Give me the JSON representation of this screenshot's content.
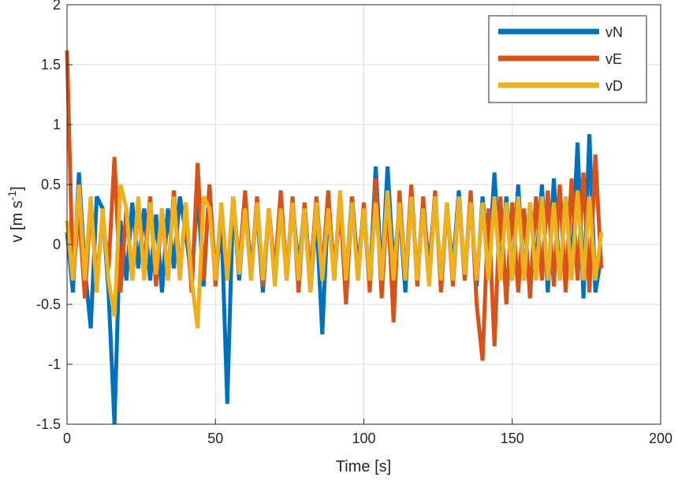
{
  "chart_data": {
    "type": "line",
    "xlabel": "Time [s]",
    "ylabel": "v [m s",
    "ylabel_sup": "-1",
    "ylabel_close": "]",
    "xlim": [
      0,
      200
    ],
    "ylim": [
      -1.5,
      2
    ],
    "xticks": [
      "0",
      "50",
      "100",
      "150",
      "200"
    ],
    "yticks": [
      "-1.5",
      "-1",
      "-0.5",
      "0",
      "0.5",
      "1",
      "1.5",
      "2"
    ],
    "grid": true,
    "legend_position": "top-right",
    "t": [
      0,
      2,
      4,
      6,
      8,
      10,
      12,
      14,
      16,
      18,
      20,
      22,
      24,
      26,
      28,
      30,
      32,
      34,
      36,
      38,
      40,
      42,
      44,
      46,
      48,
      50,
      52,
      54,
      56,
      58,
      60,
      62,
      64,
      66,
      68,
      70,
      72,
      74,
      76,
      78,
      80,
      82,
      84,
      86,
      88,
      90,
      92,
      94,
      96,
      98,
      100,
      102,
      104,
      106,
      108,
      110,
      112,
      114,
      116,
      118,
      120,
      122,
      124,
      126,
      128,
      130,
      132,
      134,
      136,
      138,
      140,
      142,
      144,
      146,
      148,
      150,
      152,
      154,
      156,
      158,
      160,
      162,
      164,
      166,
      168,
      170,
      172,
      174,
      176,
      178,
      180
    ],
    "series": [
      {
        "name": "vN",
        "color": "#0072BD",
        "values": [
          0.1,
          -0.4,
          0.6,
          -0.2,
          -0.7,
          0.4,
          0.3,
          -0.4,
          -1.5,
          0.2,
          -0.3,
          0.35,
          -0.2,
          0.3,
          -0.3,
          0.25,
          -0.4,
          0.3,
          -0.2,
          0.4,
          0.1,
          -0.3,
          0.45,
          -0.35,
          0.5,
          -0.3,
          0.2,
          -1.33,
          0.4,
          -0.3,
          0.35,
          -0.2,
          0.3,
          -0.4,
          0.3,
          -0.25,
          0.4,
          -0.3,
          0.35,
          -0.2,
          0.3,
          -0.4,
          0.25,
          -0.75,
          0.35,
          -0.2,
          0.3,
          -0.3,
          0.4,
          -0.2,
          0.3,
          -0.35,
          0.65,
          -0.3,
          0.65,
          -0.2,
          0.3,
          -0.4,
          0.45,
          -0.3,
          0.35,
          -0.2,
          0.4,
          -0.3,
          0.3,
          -0.2,
          0.45,
          -0.3,
          0.4,
          -0.35,
          0.4,
          -0.2,
          0.6,
          -0.3,
          0.4,
          -0.3,
          0.5,
          -0.3,
          0.35,
          -0.2,
          0.5,
          -0.4,
          0.55,
          -0.3,
          0.4,
          -0.2,
          0.85,
          -0.45,
          0.92,
          -0.4,
          -0.1
        ]
      },
      {
        "name": "vE",
        "color": "#D95319",
        "values": [
          1.62,
          -0.3,
          0.3,
          -0.45,
          0.35,
          -0.3,
          0.25,
          -0.2,
          0.73,
          -0.4,
          0.3,
          -0.3,
          0.35,
          -0.2,
          0.4,
          -0.35,
          0.3,
          -0.3,
          0.45,
          -0.25,
          0.3,
          -0.4,
          0.68,
          -0.3,
          0.5,
          -0.35,
          0.3,
          -0.3,
          0.4,
          -0.2,
          0.45,
          -0.3,
          0.4,
          -0.35,
          0.3,
          -0.25,
          0.45,
          -0.3,
          0.4,
          -0.4,
          0.35,
          -0.3,
          0.4,
          -0.25,
          0.45,
          -0.3,
          0.35,
          -0.5,
          0.4,
          -0.3,
          0.35,
          -0.4,
          0.55,
          -0.45,
          0.4,
          -0.65,
          0.45,
          -0.3,
          0.5,
          -0.35,
          0.4,
          -0.3,
          0.45,
          -0.4,
          0.35,
          -0.35,
          0.4,
          -0.3,
          0.45,
          -0.5,
          -0.97,
          0.3,
          -0.85,
          0.4,
          -0.5,
          0.35,
          -0.4,
          0.3,
          -0.45,
          0.4,
          -0.3,
          0.45,
          -0.35,
          0.5,
          -0.4,
          0.55,
          -0.3,
          0.6,
          -0.4,
          0.75,
          -0.2
        ]
      },
      {
        "name": "vD",
        "color": "#EDB120",
        "values": [
          0.2,
          -0.3,
          0.5,
          -0.3,
          0.4,
          -0.4,
          0.3,
          -0.3,
          -0.6,
          0.5,
          0.3,
          -0.3,
          0.4,
          -0.3,
          0.35,
          -0.25,
          0.3,
          -0.3,
          0.4,
          -0.3,
          0.35,
          -0.3,
          -0.7,
          0.4,
          0.3,
          -0.3,
          0.35,
          -0.3,
          0.4,
          -0.25,
          0.3,
          -0.3,
          0.35,
          -0.3,
          0.3,
          -0.35,
          0.3,
          -0.3,
          0.35,
          -0.3,
          0.3,
          -0.4,
          0.35,
          -0.3,
          0.3,
          -0.3,
          0.45,
          -0.3,
          0.35,
          -0.3,
          0.3,
          -0.3,
          0.35,
          -0.3,
          0.45,
          -0.3,
          0.35,
          -0.3,
          0.4,
          -0.3,
          0.3,
          -0.35,
          0.4,
          -0.3,
          0.35,
          -0.3,
          0.4,
          -0.25,
          0.35,
          -0.3,
          0.35,
          -0.3,
          0.4,
          -0.3,
          0.35,
          -0.3,
          0.4,
          -0.3,
          0.35,
          -0.3,
          0.4,
          -0.3,
          0.35,
          -0.3,
          0.4,
          -0.3,
          0.45,
          -0.3,
          0.4,
          -0.3,
          0.1
        ]
      }
    ]
  }
}
